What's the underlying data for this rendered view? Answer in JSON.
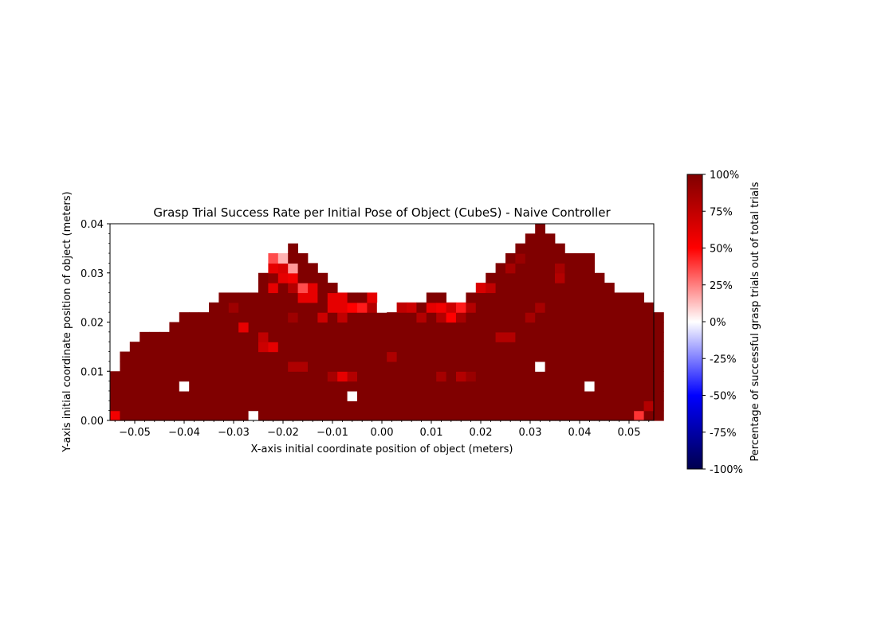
{
  "chart_data": {
    "type": "heatmap",
    "title": "Grasp Trial Success Rate per Initial Pose of Object (CubeS) - Naive Controller",
    "xlabel": "X-axis initial coordinate position of object (meters)",
    "ylabel": "Y-axis initial coordinate position of object (meters)",
    "xlim": [
      -0.055,
      0.055
    ],
    "ylim": [
      0.0,
      0.04
    ],
    "cell_size": 0.002,
    "x_ticks": [
      {
        "value": -0.05,
        "label": "−0.05"
      },
      {
        "value": -0.04,
        "label": "−0.04"
      },
      {
        "value": -0.03,
        "label": "−0.03"
      },
      {
        "value": -0.02,
        "label": "−0.02"
      },
      {
        "value": -0.01,
        "label": "−0.01"
      },
      {
        "value": 0.0,
        "label": "0.00"
      },
      {
        "value": 0.01,
        "label": "0.01"
      },
      {
        "value": 0.02,
        "label": "0.02"
      },
      {
        "value": 0.03,
        "label": "0.03"
      },
      {
        "value": 0.04,
        "label": "0.04"
      },
      {
        "value": 0.05,
        "label": "0.05"
      }
    ],
    "y_ticks": [
      {
        "value": 0.0,
        "label": "0.00"
      },
      {
        "value": 0.01,
        "label": "0.01"
      },
      {
        "value": 0.02,
        "label": "0.02"
      },
      {
        "value": 0.03,
        "label": "0.03"
      },
      {
        "value": 0.04,
        "label": "0.04"
      }
    ],
    "colormap": "seismic",
    "color_range": [
      -100,
      100
    ],
    "colorbar": {
      "label": "Percentage of successful grasp trials out of total trials",
      "ticks": [
        {
          "value": 100,
          "label": "100%"
        },
        {
          "value": 75,
          "label": "75%"
        },
        {
          "value": 50,
          "label": "50%"
        },
        {
          "value": 25,
          "label": "25%"
        },
        {
          "value": 0,
          "label": "0%"
        },
        {
          "value": -25,
          "label": "-25%"
        },
        {
          "value": -50,
          "label": "-50%"
        },
        {
          "value": -75,
          "label": "-75%"
        },
        {
          "value": -100,
          "label": "-100%"
        }
      ]
    },
    "column_tops": [
      10,
      14,
      16,
      18,
      18,
      18,
      20,
      22,
      22,
      22,
      24,
      26,
      26,
      26,
      26,
      30,
      34,
      34,
      36,
      34,
      32,
      30,
      28,
      26,
      26,
      26,
      26,
      24,
      22,
      24,
      24,
      24,
      26,
      26,
      24,
      24,
      26,
      28,
      30,
      32,
      34,
      36,
      38,
      40,
      38,
      36,
      34,
      34,
      34,
      30,
      28,
      26,
      26,
      26,
      24,
      22
    ],
    "default_value": 100,
    "exceptions": [
      {
        "x": -0.054,
        "y": 0.001,
        "v": 55
      },
      {
        "x": -0.04,
        "y": 0.007,
        "v": 0
      },
      {
        "x": -0.026,
        "y": 0.001,
        "v": 0
      },
      {
        "x": -0.006,
        "y": 0.005,
        "v": 0
      },
      {
        "x": 0.032,
        "y": 0.011,
        "v": 0
      },
      {
        "x": 0.042,
        "y": 0.007,
        "v": 0
      },
      {
        "x": 0.052,
        "y": 0.001,
        "v": 40
      },
      {
        "x": 0.054,
        "y": 0.003,
        "v": 80
      },
      {
        "x": -0.028,
        "y": 0.019,
        "v": 60
      },
      {
        "x": -0.024,
        "y": 0.017,
        "v": 75
      },
      {
        "x": -0.024,
        "y": 0.015,
        "v": 70
      },
      {
        "x": -0.022,
        "y": 0.015,
        "v": 60
      },
      {
        "x": -0.018,
        "y": 0.011,
        "v": 82
      },
      {
        "x": -0.016,
        "y": 0.011,
        "v": 82
      },
      {
        "x": -0.01,
        "y": 0.009,
        "v": 85
      },
      {
        "x": -0.008,
        "y": 0.009,
        "v": 60
      },
      {
        "x": -0.006,
        "y": 0.009,
        "v": 80
      },
      {
        "x": 0.001,
        "y": 0.013,
        "v": 82
      },
      {
        "x": 0.012,
        "y": 0.009,
        "v": 85
      },
      {
        "x": 0.016,
        "y": 0.009,
        "v": 80
      },
      {
        "x": 0.018,
        "y": 0.009,
        "v": 90
      },
      {
        "x": 0.024,
        "y": 0.017,
        "v": 80
      },
      {
        "x": 0.026,
        "y": 0.017,
        "v": 80
      },
      {
        "x": -0.03,
        "y": 0.023,
        "v": 88
      },
      {
        "x": -0.018,
        "y": 0.021,
        "v": 88
      },
      {
        "x": -0.012,
        "y": 0.021,
        "v": 70
      },
      {
        "x": -0.01,
        "y": 0.023,
        "v": 60
      },
      {
        "x": -0.008,
        "y": 0.023,
        "v": 60
      },
      {
        "x": -0.008,
        "y": 0.021,
        "v": 75
      },
      {
        "x": -0.006,
        "y": 0.023,
        "v": 50
      },
      {
        "x": -0.004,
        "y": 0.023,
        "v": 45
      },
      {
        "x": -0.002,
        "y": 0.023,
        "v": 80
      },
      {
        "x": 0.0,
        "y": 0.023,
        "v": 0
      },
      {
        "x": 0.004,
        "y": 0.023,
        "v": 75
      },
      {
        "x": 0.006,
        "y": 0.023,
        "v": 70
      },
      {
        "x": 0.008,
        "y": 0.021,
        "v": 80
      },
      {
        "x": 0.01,
        "y": 0.023,
        "v": 60
      },
      {
        "x": 0.012,
        "y": 0.023,
        "v": 55
      },
      {
        "x": 0.012,
        "y": 0.021,
        "v": 80
      },
      {
        "x": 0.014,
        "y": 0.023,
        "v": 70
      },
      {
        "x": 0.014,
        "y": 0.021,
        "v": 50
      },
      {
        "x": 0.016,
        "y": 0.023,
        "v": 45
      },
      {
        "x": 0.016,
        "y": 0.021,
        "v": 85
      },
      {
        "x": 0.018,
        "y": 0.023,
        "v": 80
      },
      {
        "x": 0.03,
        "y": 0.021,
        "v": 85
      },
      {
        "x": 0.032,
        "y": 0.023,
        "v": 85
      },
      {
        "x": -0.016,
        "y": 0.025,
        "v": 60
      },
      {
        "x": -0.014,
        "y": 0.025,
        "v": 60
      },
      {
        "x": -0.01,
        "y": 0.025,
        "v": 60
      },
      {
        "x": -0.008,
        "y": 0.025,
        "v": 60
      },
      {
        "x": -0.002,
        "y": 0.025,
        "v": 60
      },
      {
        "x": 0.0,
        "y": 0.025,
        "v": 60
      },
      {
        "x": 0.002,
        "y": 0.025,
        "v": 0
      },
      {
        "x": 0.004,
        "y": 0.025,
        "v": 35
      },
      {
        "x": 0.006,
        "y": 0.025,
        "v": 35
      },
      {
        "x": 0.008,
        "y": 0.025,
        "v": 20
      },
      {
        "x": 0.014,
        "y": 0.025,
        "v": 20
      },
      {
        "x": 0.016,
        "y": 0.025,
        "v": 25
      },
      {
        "x": -0.022,
        "y": 0.027,
        "v": 60
      },
      {
        "x": -0.018,
        "y": 0.027,
        "v": 80
      },
      {
        "x": -0.016,
        "y": 0.027,
        "v": 35
      },
      {
        "x": -0.014,
        "y": 0.027,
        "v": 60
      },
      {
        "x": -0.0,
        "y": 0.027,
        "v": 35
      },
      {
        "x": 0.004,
        "y": 0.027,
        "v": 60
      },
      {
        "x": 0.016,
        "y": 0.027,
        "v": 40
      },
      {
        "x": 0.02,
        "y": 0.027,
        "v": 65
      },
      {
        "x": 0.022,
        "y": 0.027,
        "v": 75
      },
      {
        "x": -0.022,
        "y": 0.029,
        "v": 95
      },
      {
        "x": -0.02,
        "y": 0.029,
        "v": 60
      },
      {
        "x": -0.018,
        "y": 0.029,
        "v": 55
      },
      {
        "x": 0.02,
        "y": 0.029,
        "v": 60
      },
      {
        "x": 0.036,
        "y": 0.029,
        "v": 80
      },
      {
        "x": -0.022,
        "y": 0.031,
        "v": 60
      },
      {
        "x": -0.02,
        "y": 0.031,
        "v": 65
      },
      {
        "x": -0.018,
        "y": 0.031,
        "v": 20
      },
      {
        "x": 0.026,
        "y": 0.031,
        "v": 85
      },
      {
        "x": 0.036,
        "y": 0.031,
        "v": 85
      },
      {
        "x": -0.022,
        "y": 0.033,
        "v": 35
      },
      {
        "x": -0.02,
        "y": 0.033,
        "v": 15
      },
      {
        "x": 0.028,
        "y": 0.033,
        "v": 90
      },
      {
        "x": 0.024,
        "y": 0.035,
        "v": 45
      },
      {
        "x": 0.026,
        "y": 0.035,
        "v": 65
      },
      {
        "x": 0.026,
        "y": 0.037,
        "v": 60
      },
      {
        "x": 0.028,
        "y": 0.037,
        "v": 85
      },
      {
        "x": 0.026,
        "y": 0.039,
        "v": 15
      },
      {
        "x": 0.028,
        "y": 0.039,
        "v": 85
      }
    ]
  }
}
